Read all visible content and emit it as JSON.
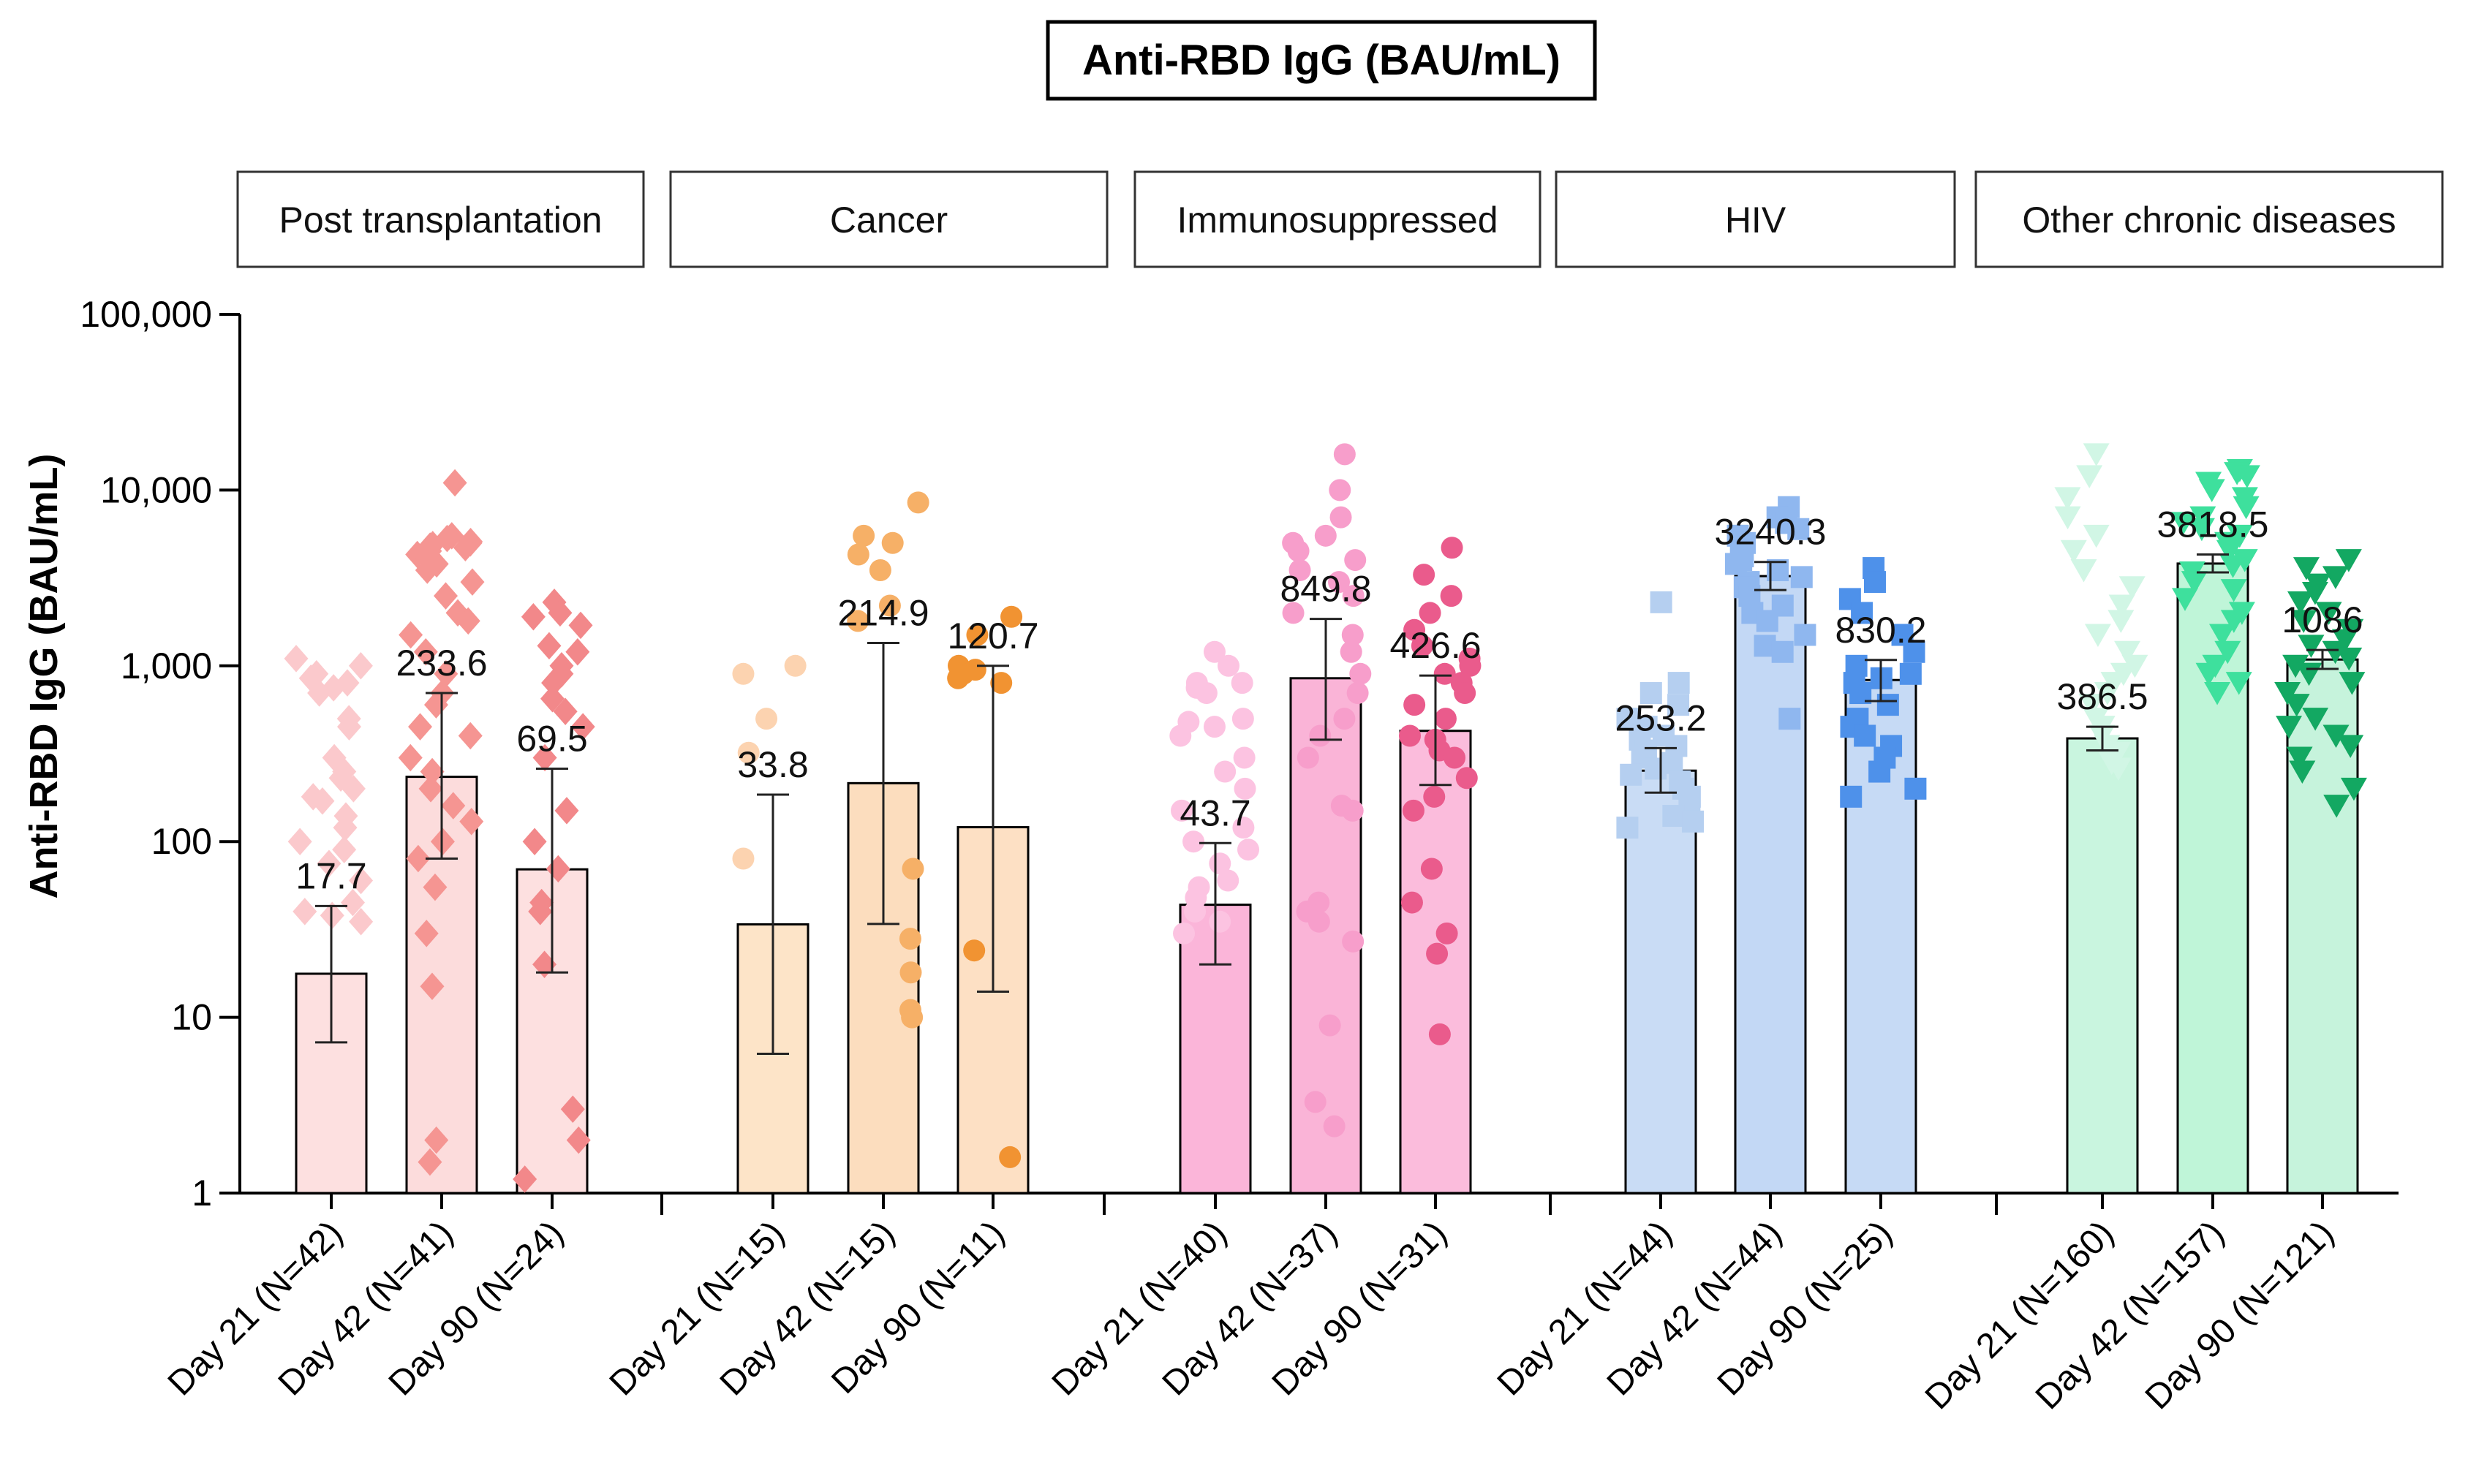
{
  "chart_data": {
    "type": "bar",
    "title": "Anti-RBD IgG (BAU/mL)",
    "ylabel": "Anti-RBD IgG (BAU/mL)",
    "xlabel": "",
    "yscale": "log",
    "ylim": [
      1,
      100000
    ],
    "yticks": [
      {
        "value": 1,
        "label": "1"
      },
      {
        "value": 10,
        "label": "10"
      },
      {
        "value": 100,
        "label": "100"
      },
      {
        "value": 1000,
        "label": "1,000"
      },
      {
        "value": 10000,
        "label": "10,000"
      },
      {
        "value": 100000,
        "label": "100,000"
      }
    ],
    "groups": [
      {
        "name": "Post transplantation",
        "marker": "diamond",
        "bars": [
          {
            "label": "Day 21 (N=42)",
            "value": 17.7,
            "value_label": "17.7",
            "ci": [
              7.2,
              43
            ],
            "color": "#fde0e0",
            "point_color": "#fbc9cc",
            "points": [
              1100,
              1000,
              900,
              850,
              800,
              750,
              700,
              500,
              450,
              300,
              250,
              230,
              200,
              180,
              170,
              140,
              120,
              100,
              90,
              75,
              60,
              45,
              40,
              38,
              35
            ]
          },
          {
            "label": "Day 42 (N=41)",
            "value": 233.6,
            "value_label": "233.6",
            "ci": [
              80,
              700
            ],
            "color": "#fcdcdc",
            "point_color": "#f59592",
            "points": [
              11000,
              5500,
              5300,
              5100,
              5000,
              4900,
              4800,
              4700,
              4500,
              4300,
              4100,
              3800,
              3500,
              3000,
              2500,
              2000,
              1800,
              1500,
              1200,
              900,
              700,
              600,
              450,
              400,
              300,
              250,
              200,
              160,
              130,
              100,
              80,
              55,
              30,
              15,
              2,
              1.5
            ]
          },
          {
            "label": "Day 90 (N=24)",
            "value": 69.5,
            "value_label": "69.5",
            "ci": [
              18,
              260
            ],
            "color": "#fde0e0",
            "point_color": "#f2888a",
            "points": [
              2300,
              2000,
              1900,
              1700,
              1300,
              1200,
              1000,
              900,
              800,
              650,
              550,
              450,
              300,
              150,
              100,
              70,
              45,
              40,
              20,
              3,
              2,
              1.2
            ]
          }
        ]
      },
      {
        "name": "Cancer",
        "marker": "circle",
        "bars": [
          {
            "label": "Day 21 (N=15)",
            "value": 33.8,
            "value_label": "33.8",
            "ci": [
              6.2,
              185
            ],
            "color": "#fde4c8",
            "point_color": "#fcd3b0",
            "points": [
              1000,
              900,
              500,
              320,
              80
            ]
          },
          {
            "label": "Day 42 (N=15)",
            "value": 214.9,
            "value_label": "214.9",
            "ci": [
              34,
              1350
            ],
            "color": "#fcddbe",
            "point_color": "#f6b067",
            "points": [
              8500,
              5500,
              5000,
              4300,
              3500,
              2200,
              1800,
              70,
              28,
              18,
              11,
              10
            ]
          },
          {
            "label": "Day 90 (N=11)",
            "value": 120.7,
            "value_label": "120.7",
            "ci": [
              14,
              1000
            ],
            "color": "#fde0c4",
            "point_color": "#f19332",
            "points": [
              1900,
              1500,
              1000,
              950,
              900,
              850,
              800,
              24,
              1.6
            ]
          }
        ]
      },
      {
        "name": "Immunosuppressed",
        "marker": "circle",
        "bars": [
          {
            "label": "Day 21 (N=40)",
            "value": 43.7,
            "value_label": "43.7",
            "ci": [
              20,
              98
            ],
            "color": "#fbb5d9",
            "point_color": "#fcc3e1",
            "points": [
              1200,
              1000,
              800,
              800,
              750,
              700,
              500,
              480,
              450,
              400,
              300,
              250,
              200,
              150,
              120,
              100,
              90,
              75,
              60,
              55,
              48,
              40,
              35,
              30
            ]
          },
          {
            "label": "Day 42 (N=37)",
            "value": 849.8,
            "value_label": "849.8",
            "ci": [
              380,
              1850
            ],
            "color": "#fab4d7",
            "point_color": "#f79ecb",
            "points": [
              16000,
              10000,
              7000,
              5500,
              5000,
              4500,
              4000,
              3500,
              3000,
              2500,
              2000,
              1500,
              1200,
              900,
              700,
              500,
              400,
              300,
              160,
              150,
              45,
              40,
              35,
              27,
              9,
              3.3,
              2.4
            ]
          },
          {
            "label": "Day 90 (N=31)",
            "value": 426.6,
            "value_label": "426.6",
            "ci": [
              210,
              880
            ],
            "color": "#fbbcdc",
            "point_color": "#ea5b8c",
            "points": [
              4700,
              3300,
              2500,
              2000,
              1600,
              1300,
              1100,
              1000,
              900,
              800,
              700,
              600,
              500,
              400,
              380,
              330,
              300,
              230,
              180,
              150,
              70,
              45,
              30,
              23,
              8
            ]
          }
        ]
      },
      {
        "name": "HIV",
        "marker": "square",
        "bars": [
          {
            "label": "Day 21 (N=44)",
            "value": 253.2,
            "value_label": "253.2",
            "ci": [
              190,
              340
            ],
            "color": "#c9dcf5",
            "point_color": "#b5cff0",
            "points": [
              2300,
              800,
              700,
              600,
              500,
              450,
              400,
              380,
              350,
              330,
              300,
              280,
              260,
              240,
              220,
              200,
              180,
              160,
              140,
              130,
              120
            ]
          },
          {
            "label": "Day 42 (N=44)",
            "value": 3240.3,
            "value_label": "3240.3",
            "ci": [
              2700,
              3900
            ],
            "color": "#c3d8f5",
            "point_color": "#8fb7ef",
            "points": [
              8000,
              7000,
              6500,
              6000,
              5500,
              5000,
              4500,
              4200,
              4000,
              3800,
              3500,
              3200,
              3000,
              2800,
              2500,
              2200,
              2000,
              1800,
              1500,
              1300,
              1200,
              500
            ]
          },
          {
            "label": "Day 90 (N=25)",
            "value": 830.2,
            "value_label": "830.2",
            "ci": [
              630,
              1080
            ],
            "color": "#c6daf5",
            "point_color": "#4e91ea",
            "points": [
              3600,
              3000,
              2400,
              2000,
              1500,
              1200,
              1000,
              900,
              850,
              800,
              700,
              600,
              500,
              450,
              400,
              350,
              300,
              250,
              200,
              180
            ]
          }
        ]
      },
      {
        "name": "Other chronic diseases",
        "marker": "triangle-down",
        "bars": [
          {
            "label": "Day 21 (N=160)",
            "value": 386.5,
            "value_label": "386.5",
            "ci": [
              330,
              450
            ],
            "color": "#c9f5df",
            "point_color": "#d1f6e5",
            "points": [
              16000,
              12000,
              9000,
              7000,
              5500,
              4500,
              3500,
              2800,
              2200,
              1800,
              1500,
              1200,
              1000,
              900,
              800,
              700,
              600,
              500,
              450,
              400,
              350,
              320,
              300,
              280,
              260
            ]
          },
          {
            "label": "Day 42 (N=157)",
            "value": 3818.5,
            "value_label": "3818.5",
            "ci": [
              3400,
              4300
            ],
            "color": "#bff5d8",
            "point_color": "#3ee09d",
            "points": [
              13000,
              12500,
              12000,
              11000,
              10000,
              9000,
              8000,
              7000,
              6500,
              6000,
              5500,
              5000,
              4500,
              4000,
              3700,
              3400,
              3000,
              2700,
              2400,
              2000,
              1800,
              1500,
              1200,
              1000,
              900,
              800,
              700
            ]
          },
          {
            "label": "Day 90 (N=121)",
            "value": 1086,
            "value_label": "1086",
            "ci": [
              960,
              1230
            ],
            "color": "#c6f3dc",
            "point_color": "#13a862",
            "points": [
              4000,
              3600,
              3200,
              2900,
              2600,
              2300,
              2000,
              1800,
              1600,
              1400,
              1300,
              1200,
              1100,
              1000,
              900,
              800,
              700,
              600,
              500,
              450,
              400,
              350,
              300,
              250,
              200,
              160
            ]
          }
        ]
      }
    ]
  }
}
